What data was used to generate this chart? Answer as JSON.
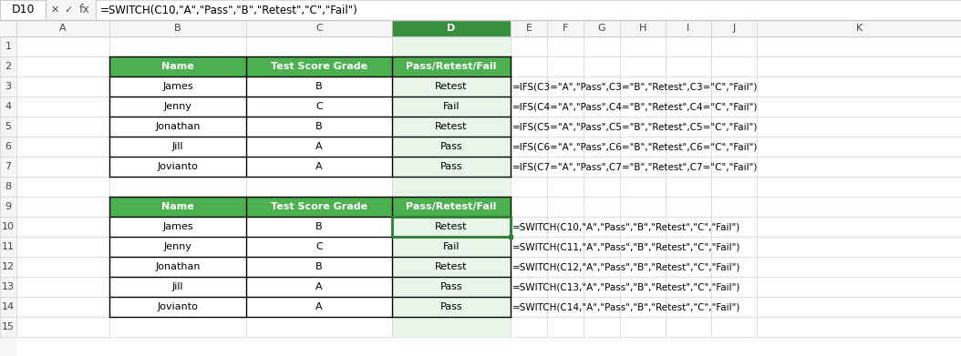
{
  "formula_bar_text": "=SWITCH(C10,\"A\",\"Pass\",\"B\",\"Retest\",\"C\",\"Fail\")",
  "cell_ref": "D10",
  "col_letters": [
    "A",
    "B",
    "C",
    "D",
    "E",
    "F",
    "G",
    "H",
    "I",
    "J",
    "K"
  ],
  "row_numbers": [
    "1",
    "2",
    "3",
    "4",
    "5",
    "6",
    "7",
    "8",
    "9",
    "10",
    "11",
    "12",
    "13",
    "14",
    "15"
  ],
  "header_bg": "#4CAF50",
  "header_text_color": "#FFFFFF",
  "cell_bg": "#FFFFFF",
  "cell_text_color": "#000000",
  "border_color": "#000000",
  "grid_color": "#D0D0D0",
  "selected_col_color": "#C8E6C9",
  "selected_col_header_color": "#388E3C",
  "formula_bar_bg": "#FFFFFF",
  "toolbar_bg": "#F5F5F5",
  "table1_headers": [
    "Name",
    "Test Score Grade",
    "Pass/Retest/Fail"
  ],
  "table1_data": [
    [
      "James",
      "B",
      "Retest"
    ],
    [
      "Jenny",
      "C",
      "Fail"
    ],
    [
      "Jonathan",
      "B",
      "Retest"
    ],
    [
      "Jill",
      "A",
      "Pass"
    ],
    [
      "Jovianto",
      "A",
      "Pass"
    ]
  ],
  "table1_formulas": [
    "=IFS(C3=\"A\",\"Pass\",C3=\"B\",\"Retest\",C3=\"C\",\"Fail\")",
    "=IFS(C4=\"A\",\"Pass\",C4=\"B\",\"Retest\",C4=\"C\",\"Fail\")",
    "=IFS(C5=\"A\",\"Pass\",C5=\"B\",\"Retest\",C5=\"C\",\"Fail\")",
    "=IFS(C6=\"A\",\"Pass\",C6=\"B\",\"Retest\",C6=\"C\",\"Fail\")",
    "=IFS(C7=\"A\",\"Pass\",C7=\"B\",\"Retest\",C7=\"C\",\"Fail\")"
  ],
  "table2_headers": [
    "Name",
    "Test Score Grade",
    "Pass/Retest/Fail"
  ],
  "table2_data": [
    [
      "James",
      "B",
      "Retest"
    ],
    [
      "Jenny",
      "C",
      "Fail"
    ],
    [
      "Jonathan",
      "B",
      "Retest"
    ],
    [
      "Jill",
      "A",
      "Pass"
    ],
    [
      "Jovianto",
      "A",
      "Pass"
    ]
  ],
  "table2_formulas": [
    "=SWITCH(C10,\"A\",\"Pass\",\"B\",\"Retest\",\"C\",\"Fail\")",
    "=SWITCH(C11,\"A\",\"Pass\",\"B\",\"Retest\",\"C\",\"Fail\")",
    "=SWITCH(C12,\"A\",\"Pass\",\"B\",\"Retest\",\"C\",\"Fail\")",
    "=SWITCH(C13,\"A\",\"Pass\",\"B\",\"Retest\",\"C\",\"Fail\")",
    "=SWITCH(C14,\"A\",\"Pass\",\"B\",\"Retest\",\"C\",\"Fail\")"
  ]
}
